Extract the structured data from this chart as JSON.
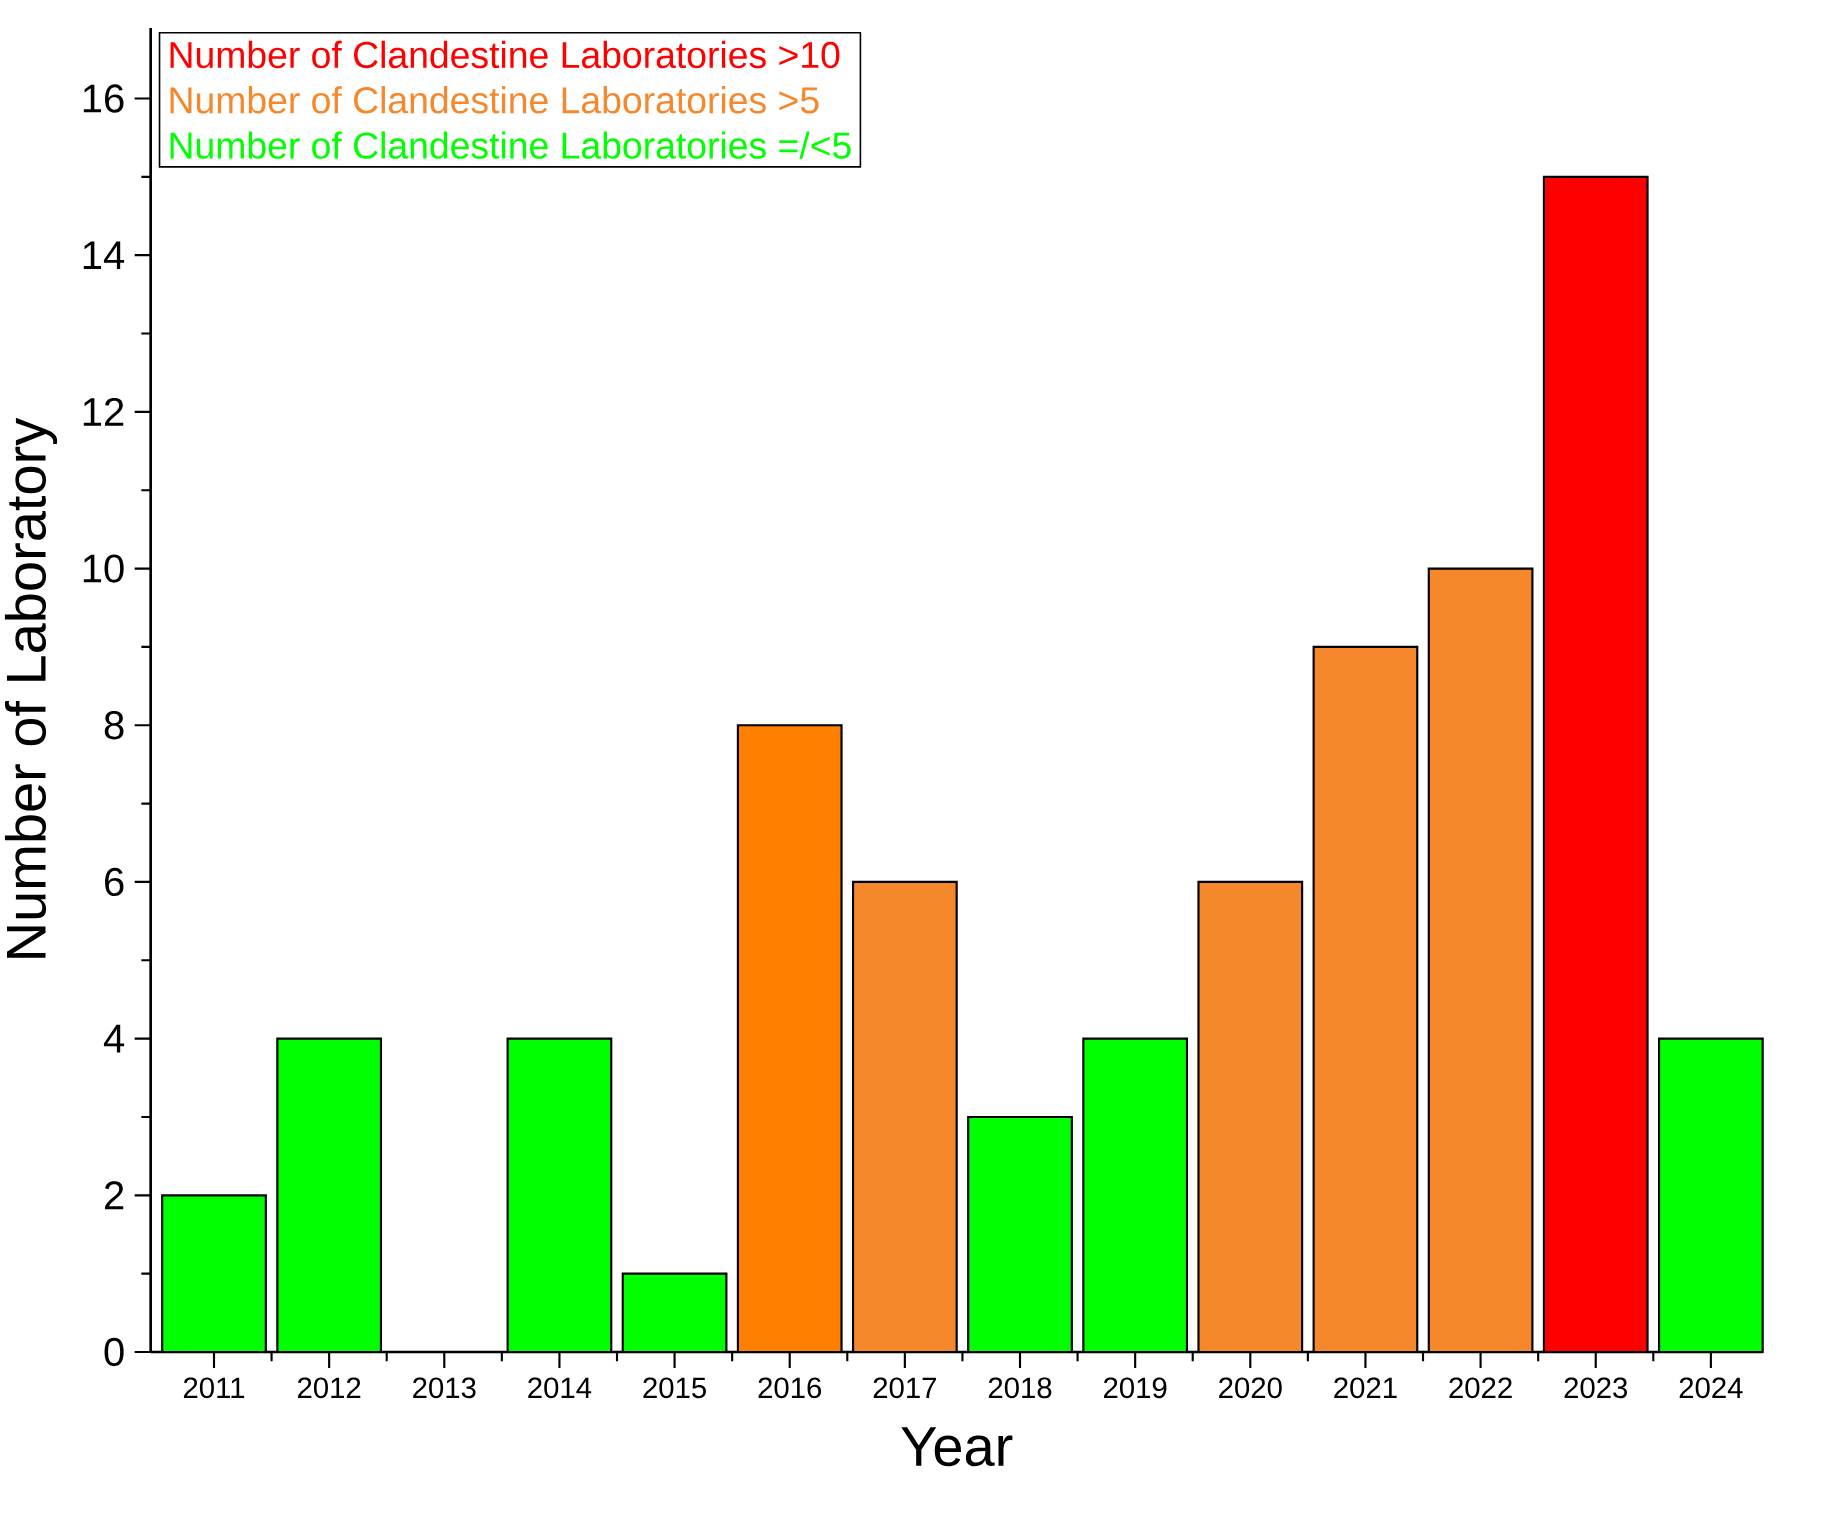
{
  "chart_data": {
    "type": "bar",
    "xlabel": "Year",
    "ylabel": "Number of Laboratory",
    "categories": [
      "2011",
      "2012",
      "2013",
      "2014",
      "2015",
      "2016",
      "2017",
      "2018",
      "2019",
      "2020",
      "2021",
      "2022",
      "2023",
      "2024"
    ],
    "series": [
      {
        "name": "Number of Clandestine Laboratories >10",
        "color": "#ff0000",
        "values": [
          null,
          null,
          null,
          null,
          null,
          null,
          null,
          null,
          null,
          null,
          null,
          null,
          15,
          null
        ]
      },
      {
        "name": "Number of Clandestine Laboratories >5",
        "color": "#f5882d",
        "colors": [
          null,
          null,
          null,
          null,
          null,
          "#ff8000",
          "#f5882d",
          null,
          null,
          "#f5882d",
          "#f5882d",
          "#f5882d",
          null,
          null
        ],
        "values": [
          null,
          null,
          null,
          null,
          null,
          8,
          6,
          null,
          null,
          6,
          9,
          10,
          null,
          null
        ]
      },
      {
        "name": "Number of Clandestine Laboratories =/<5",
        "color": "#00ff00",
        "values": [
          2,
          4,
          0,
          4,
          1,
          null,
          null,
          3,
          4,
          null,
          null,
          null,
          null,
          4
        ]
      }
    ],
    "ylim": [
      0,
      16.9
    ],
    "yticks": [
      0,
      2,
      4,
      6,
      8,
      10,
      12,
      14,
      16
    ],
    "legend": "top left",
    "grid": false
  }
}
